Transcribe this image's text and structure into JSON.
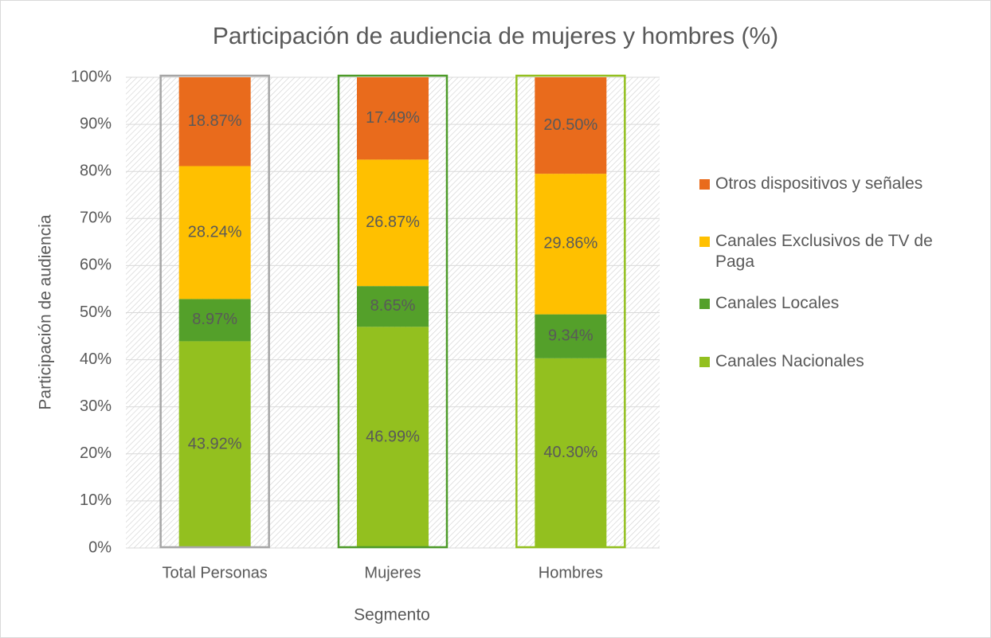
{
  "chart_data": {
    "type": "stacked_bar",
    "title": "Participación de audiencia de mujeres y hombres (%)",
    "y_label": "Participación de audiencia",
    "x_label": "Segmento",
    "categories": [
      "Total Personas",
      "Mujeres",
      "Hombres"
    ],
    "category_outline_colors": [
      "#a6a6a6",
      "#4d9b29",
      "#93c01f"
    ],
    "series": [
      {
        "name": "Canales Nacionales",
        "color": "#93c01f",
        "values": [
          43.92,
          46.99,
          40.3
        ],
        "value_labels": [
          "43.92%",
          "46.99%",
          "40.30%"
        ]
      },
      {
        "name": "Canales Locales",
        "color": "#54a02a",
        "values": [
          8.97,
          8.65,
          9.34
        ],
        "value_labels": [
          "8.97%",
          "8.65%",
          "9.34%"
        ]
      },
      {
        "name": "Canales Exclusivos de TV de Paga",
        "color": "#ffc000",
        "values": [
          28.24,
          26.87,
          29.86
        ],
        "value_labels": [
          "28.24%",
          "26.87%",
          "29.86%"
        ]
      },
      {
        "name": "Otros dispositivos y señales",
        "color": "#e96b1c",
        "values": [
          18.87,
          17.49,
          20.5
        ],
        "value_labels": [
          "18.87%",
          "17.49%",
          "20.50%"
        ]
      }
    ],
    "ylim": [
      0,
      100
    ],
    "yticks": [
      {
        "value": 0,
        "label": "0%"
      },
      {
        "value": 10,
        "label": "10%"
      },
      {
        "value": 20,
        "label": "20%"
      },
      {
        "value": 30,
        "label": "30%"
      },
      {
        "value": 40,
        "label": "40%"
      },
      {
        "value": 50,
        "label": "50%"
      },
      {
        "value": 60,
        "label": "60%"
      },
      {
        "value": 70,
        "label": "70%"
      },
      {
        "value": 80,
        "label": "80%"
      },
      {
        "value": 90,
        "label": "90%"
      },
      {
        "value": 100,
        "label": "100%"
      }
    ],
    "grid": true,
    "legend": "right"
  }
}
